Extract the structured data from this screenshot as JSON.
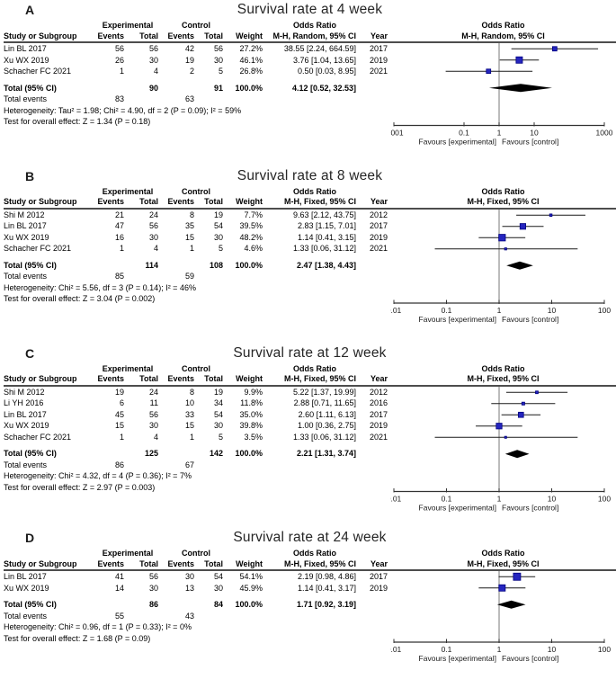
{
  "figure_title": "Forest plots of survival rate meta-analysis",
  "colors": {
    "marker": "#2525BE",
    "marker_border": "#000080",
    "diamond": "#000000",
    "center_line": "#909090",
    "axis": "#333333",
    "ci_line": "#1a1a1a",
    "header_rule": "#4d4d4d"
  },
  "table_headers": {
    "study": "Study or Subgroup",
    "group_experimental": "Experimental",
    "group_control": "Control",
    "events": "Events",
    "total": "Total",
    "weight": "Weight",
    "odds_ratio": "Odds Ratio",
    "year": "Year"
  },
  "chart_data": [
    {
      "type": "forest",
      "panel_label": "A",
      "title": "Survival rate at 4 week",
      "effect_label": "M-H, Random, 95% CI",
      "studies": [
        {
          "study": "Lin BL 2017",
          "exp_events": 56,
          "exp_total": 56,
          "ctl_events": 42,
          "ctl_total": 56,
          "weight": "27.2%",
          "weight_pct": 27.2,
          "or": 38.55,
          "ci_low": 2.24,
          "ci_high": 664.59,
          "or_text": "38.55 [2.24, 664.59]",
          "year": 2017
        },
        {
          "study": "Xu WX 2019",
          "exp_events": 26,
          "exp_total": 30,
          "ctl_events": 19,
          "ctl_total": 30,
          "weight": "46.1%",
          "weight_pct": 46.1,
          "or": 3.76,
          "ci_low": 1.04,
          "ci_high": 13.65,
          "or_text": "3.76 [1.04, 13.65]",
          "year": 2019
        },
        {
          "study": "Schacher FC 2021",
          "exp_events": 1,
          "exp_total": 4,
          "ctl_events": 2,
          "ctl_total": 5,
          "weight": "26.8%",
          "weight_pct": 26.8,
          "or": 0.5,
          "ci_low": 0.03,
          "ci_high": 8.95,
          "or_text": "0.50 [0.03, 8.95]",
          "year": 2021
        }
      ],
      "total": {
        "label": "Total (95% CI)",
        "exp_total": 90,
        "ctl_total": 91,
        "weight": "100.0%",
        "or": 4.12,
        "ci_low": 0.52,
        "ci_high": 32.53,
        "or_text": "4.12 [0.52, 32.53]"
      },
      "total_events": {
        "label": "Total events",
        "exp": 83,
        "ctl": 63
      },
      "heterogeneity": "Heterogeneity: Tau² = 1.98; Chi² = 4.90, df = 2 (P = 0.09); I² = 59%",
      "overall_effect": "Test for overall effect: Z = 1.34 (P = 0.18)",
      "axis_ticks": [
        0.001,
        0.1,
        1,
        10,
        1000
      ],
      "axis_range_log": [
        -3,
        3
      ],
      "favours_left": "Favours [experimental]",
      "favours_right": "Favours [control]"
    },
    {
      "type": "forest",
      "panel_label": "B",
      "title": "Survival rate at 8 week",
      "effect_label": "M-H, Fixed, 95% CI",
      "studies": [
        {
          "study": "Shi M 2012",
          "exp_events": 21,
          "exp_total": 24,
          "ctl_events": 8,
          "ctl_total": 19,
          "weight": "7.7%",
          "weight_pct": 7.7,
          "or": 9.63,
          "ci_low": 2.12,
          "ci_high": 43.75,
          "or_text": "9.63 [2.12, 43.75]",
          "year": 2012
        },
        {
          "study": "Lin BL 2017",
          "exp_events": 47,
          "exp_total": 56,
          "ctl_events": 35,
          "ctl_total": 54,
          "weight": "39.5%",
          "weight_pct": 39.5,
          "or": 2.83,
          "ci_low": 1.15,
          "ci_high": 7.01,
          "or_text": "2.83 [1.15, 7.01]",
          "year": 2017
        },
        {
          "study": "Xu WX 2019",
          "exp_events": 16,
          "exp_total": 30,
          "ctl_events": 15,
          "ctl_total": 30,
          "weight": "48.2%",
          "weight_pct": 48.2,
          "or": 1.14,
          "ci_low": 0.41,
          "ci_high": 3.15,
          "or_text": "1.14 [0.41, 3.15]",
          "year": 2019
        },
        {
          "study": "Schacher FC 2021",
          "exp_events": 1,
          "exp_total": 4,
          "ctl_events": 1,
          "ctl_total": 5,
          "weight": "4.6%",
          "weight_pct": 4.6,
          "or": 1.33,
          "ci_low": 0.06,
          "ci_high": 31.12,
          "or_text": "1.33 [0.06, 31.12]",
          "year": 2021
        }
      ],
      "total": {
        "label": "Total (95% CI)",
        "exp_total": 114,
        "ctl_total": 108,
        "weight": "100.0%",
        "or": 2.47,
        "ci_low": 1.38,
        "ci_high": 4.43,
        "or_text": "2.47 [1.38, 4.43]"
      },
      "total_events": {
        "label": "Total events",
        "exp": 85,
        "ctl": 59
      },
      "heterogeneity": "Heterogeneity: Chi² = 5.56, df = 3 (P = 0.14); I² = 46%",
      "overall_effect": "Test for overall effect: Z = 3.04 (P = 0.002)",
      "axis_ticks": [
        0.01,
        0.1,
        1,
        10,
        100
      ],
      "axis_range_log": [
        -2,
        2
      ],
      "favours_left": "Favours [experimental]",
      "favours_right": "Favours [control]"
    },
    {
      "type": "forest",
      "panel_label": "C",
      "title": "Survival rate at 12 week",
      "effect_label": "M-H, Fixed, 95% CI",
      "studies": [
        {
          "study": "Shi M 2012",
          "exp_events": 19,
          "exp_total": 24,
          "ctl_events": 8,
          "ctl_total": 19,
          "weight": "9.9%",
          "weight_pct": 9.9,
          "or": 5.22,
          "ci_low": 1.37,
          "ci_high": 19.99,
          "or_text": "5.22 [1.37, 19.99]",
          "year": 2012
        },
        {
          "study": "Li YH 2016",
          "exp_events": 6,
          "exp_total": 11,
          "ctl_events": 10,
          "ctl_total": 34,
          "weight": "11.8%",
          "weight_pct": 11.8,
          "or": 2.88,
          "ci_low": 0.71,
          "ci_high": 11.65,
          "or_text": "2.88 [0.71, 11.65]",
          "year": 2016
        },
        {
          "study": "Lin BL 2017",
          "exp_events": 45,
          "exp_total": 56,
          "ctl_events": 33,
          "ctl_total": 54,
          "weight": "35.0%",
          "weight_pct": 35.0,
          "or": 2.6,
          "ci_low": 1.11,
          "ci_high": 6.13,
          "or_text": "2.60 [1.11, 6.13]",
          "year": 2017
        },
        {
          "study": "Xu WX 2019",
          "exp_events": 15,
          "exp_total": 30,
          "ctl_events": 15,
          "ctl_total": 30,
          "weight": "39.8%",
          "weight_pct": 39.8,
          "or": 1.0,
          "ci_low": 0.36,
          "ci_high": 2.75,
          "or_text": "1.00 [0.36, 2.75]",
          "year": 2019
        },
        {
          "study": "Schacher FC 2021",
          "exp_events": 1,
          "exp_total": 4,
          "ctl_events": 1,
          "ctl_total": 5,
          "weight": "3.5%",
          "weight_pct": 3.5,
          "or": 1.33,
          "ci_low": 0.06,
          "ci_high": 31.12,
          "or_text": "1.33 [0.06, 31.12]",
          "year": 2021
        }
      ],
      "total": {
        "label": "Total (95% CI)",
        "exp_total": 125,
        "ctl_total": 142,
        "weight": "100.0%",
        "or": 2.21,
        "ci_low": 1.31,
        "ci_high": 3.74,
        "or_text": "2.21 [1.31, 3.74]"
      },
      "total_events": {
        "label": "Total events",
        "exp": 86,
        "ctl": 67
      },
      "heterogeneity": "Heterogeneity: Chi² = 4.32, df = 4 (P = 0.36); I² = 7%",
      "overall_effect": "Test for overall effect: Z = 2.97 (P = 0.003)",
      "axis_ticks": [
        0.01,
        0.1,
        1,
        10,
        100
      ],
      "axis_range_log": [
        -2,
        2
      ],
      "favours_left": "Favours [experimental]",
      "favours_right": "Favours [control]"
    },
    {
      "type": "forest",
      "panel_label": "D",
      "title": "Survival rate at 24 week",
      "effect_label": "M-H, Fixed, 95% CI",
      "studies": [
        {
          "study": "Lin BL 2017",
          "exp_events": 41,
          "exp_total": 56,
          "ctl_events": 30,
          "ctl_total": 54,
          "weight": "54.1%",
          "weight_pct": 54.1,
          "or": 2.19,
          "ci_low": 0.98,
          "ci_high": 4.86,
          "or_text": "2.19 [0.98, 4.86]",
          "year": 2017
        },
        {
          "study": "Xu WX 2019",
          "exp_events": 14,
          "exp_total": 30,
          "ctl_events": 13,
          "ctl_total": 30,
          "weight": "45.9%",
          "weight_pct": 45.9,
          "or": 1.14,
          "ci_low": 0.41,
          "ci_high": 3.17,
          "or_text": "1.14 [0.41, 3.17]",
          "year": 2019
        }
      ],
      "total": {
        "label": "Total (95% CI)",
        "exp_total": 86,
        "ctl_total": 84,
        "weight": "100.0%",
        "or": 1.71,
        "ci_low": 0.92,
        "ci_high": 3.19,
        "or_text": "1.71 [0.92, 3.19]"
      },
      "total_events": {
        "label": "Total events",
        "exp": 55,
        "ctl": 43
      },
      "heterogeneity": "Heterogeneity: Chi² = 0.96, df = 1 (P = 0.33); I² = 0%",
      "overall_effect": "Test for overall effect: Z = 1.68 (P = 0.09)",
      "axis_ticks": [
        0.01,
        0.1,
        1,
        10,
        100
      ],
      "axis_range_log": [
        -2,
        2
      ],
      "favours_left": "Favours [experimental]",
      "favours_right": "Favours [control]"
    }
  ]
}
